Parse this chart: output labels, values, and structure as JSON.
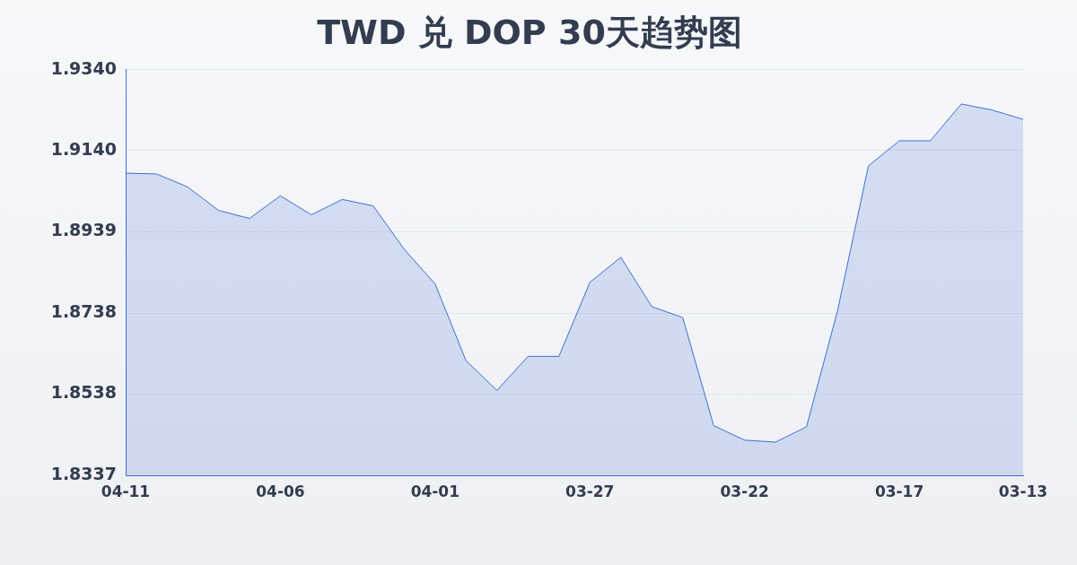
{
  "chart_data": {
    "type": "area",
    "title": "TWD 兑 DOP 30天趋势图",
    "categories": [
      "04-11",
      null,
      null,
      null,
      null,
      "04-06",
      null,
      null,
      null,
      null,
      "04-01",
      null,
      null,
      null,
      null,
      "03-27",
      null,
      null,
      null,
      null,
      "03-22",
      null,
      null,
      null,
      null,
      "03-17",
      null,
      null,
      null,
      "03-13"
    ],
    "series": [
      {
        "color": "#3d6fd4",
        "values": [
          1.9084,
          1.9082,
          1.905,
          1.8992,
          1.8972,
          1.9028,
          1.8981,
          1.9019,
          1.9003,
          1.8896,
          1.881,
          1.862,
          1.8547,
          1.8631,
          1.8631,
          1.8814,
          1.8876,
          1.8754,
          1.8727,
          1.846,
          1.8424,
          1.8419,
          1.8457,
          1.8743,
          1.9102,
          1.9164,
          1.9164,
          1.9255,
          1.924,
          1.9217
        ]
      }
    ],
    "ylim": [
      1.8337,
      1.934
    ],
    "yticks": [
      1.8337,
      1.8538,
      1.8738,
      1.8939,
      {
        "value": 1.914,
        "label": "1.9140"
      },
      {
        "value": 1.934,
        "label": "1.9340"
      }
    ],
    "grid": "y",
    "legend": false,
    "marker": "none",
    "line_style": "solid"
  }
}
